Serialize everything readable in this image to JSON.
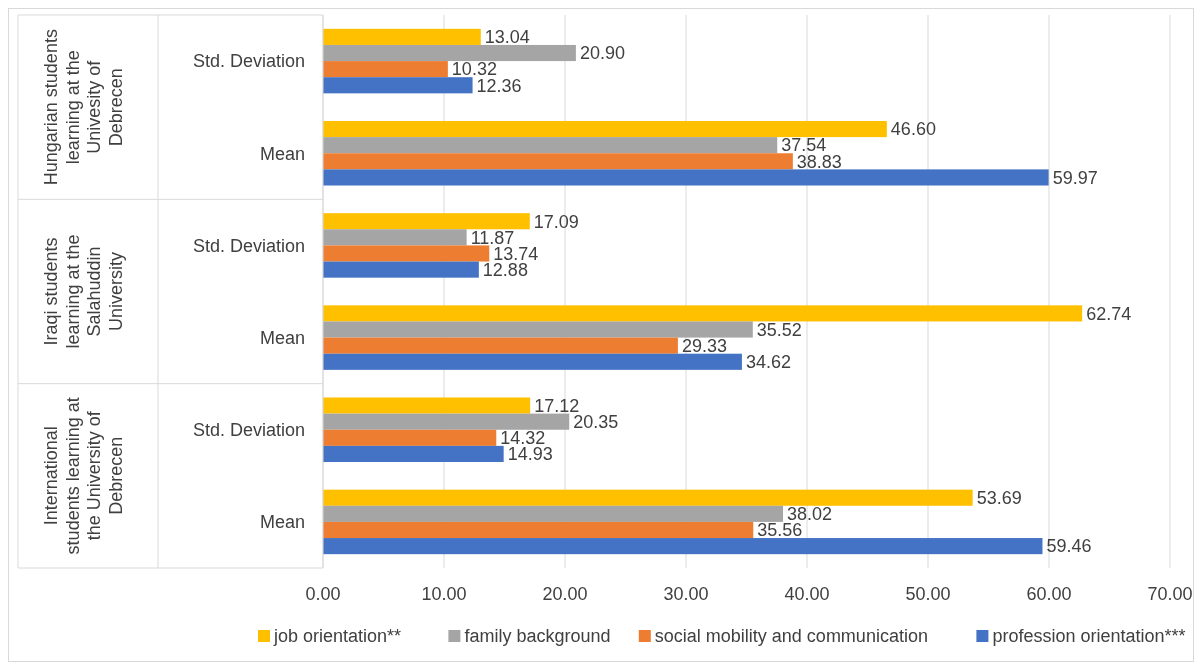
{
  "chart_data": {
    "type": "bar",
    "orientation": "horizontal",
    "categories": [
      "Std. Deviation",
      "Mean",
      "Std. Deviation",
      "Mean",
      "Std. Deviation",
      "Mean"
    ],
    "annotations": [
      "Hungarian students learning at the Univesity of Debrecen",
      "Iraqi students learning at the Salahuddin University",
      "International students learning at the University of Debrecen"
    ],
    "series": [
      {
        "name": "job orientation**",
        "color": "#ffc000",
        "values": [
          13.04,
          46.6,
          17.09,
          62.74,
          17.12,
          53.69
        ],
        "value_labels": [
          "13.04",
          "46.60",
          "17.09",
          "62.74",
          "17.12",
          "53.69"
        ]
      },
      {
        "name": "family background",
        "color": "#a5a5a5",
        "values": [
          20.9,
          37.54,
          11.87,
          35.52,
          20.35,
          38.02
        ],
        "value_labels": [
          "20.90",
          "37.54",
          "11.87",
          "35.52",
          "20.35",
          "38.02"
        ]
      },
      {
        "name": "social mobility and communication",
        "color": "#ed7d31",
        "values": [
          10.32,
          38.83,
          13.74,
          29.33,
          14.32,
          35.56
        ],
        "value_labels": [
          "10.32",
          "38.83",
          "13.74",
          "29.33",
          "14.32",
          "35.56"
        ]
      },
      {
        "name": "profession orientation***",
        "color": "#4472c4",
        "values": [
          12.36,
          59.97,
          12.88,
          34.62,
          14.93,
          59.46
        ],
        "value_labels": [
          "12.36",
          "59.97",
          "12.88",
          "34.62",
          "14.93",
          "59.46"
        ]
      }
    ],
    "xlim": [
      0,
      70
    ],
    "xticks": [
      {
        "value": 0,
        "label": "0.00"
      },
      {
        "value": 10,
        "label": "10.00"
      },
      {
        "value": 20,
        "label": "20.00"
      },
      {
        "value": 30,
        "label": "30.00"
      },
      {
        "value": 40,
        "label": "40.00"
      },
      {
        "value": 50,
        "label": "50.00"
      },
      {
        "value": 60,
        "label": "60.00"
      },
      {
        "value": 70,
        "label": "70.00"
      }
    ],
    "grid": "x",
    "legend": "bottom"
  }
}
